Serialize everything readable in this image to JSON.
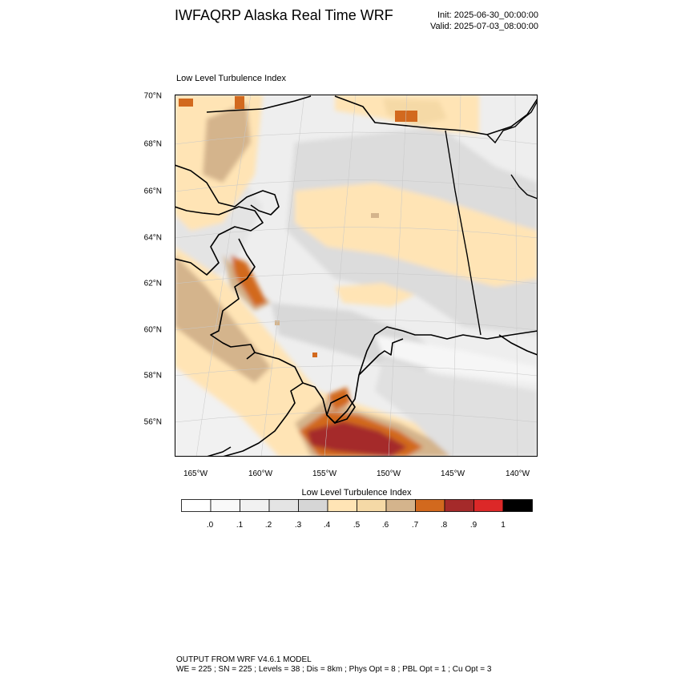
{
  "header": {
    "title": "IWFAQRP Alaska Real Time WRF",
    "init": "Init: 2025-06-30_00:00:00",
    "valid": "Valid: 2025-07-03_08:00:00"
  },
  "map": {
    "title": "Low Level Turbulence Index",
    "lat_labels": [
      "70°N",
      "68°N",
      "66°N",
      "64°N",
      "62°N",
      "60°N",
      "58°N",
      "56°N"
    ],
    "lon_labels": [
      "165°W",
      "160°W",
      "155°W",
      "150°W",
      "145°W",
      "140°W"
    ]
  },
  "colorbar": {
    "title": "Low Level Turbulence Index",
    "colors": [
      "#ffffff",
      "#f9f9f9",
      "#f1f1f1",
      "#e4e4e4",
      "#d6d6d6",
      "#ffe4b5",
      "#f5d9a6",
      "#d4b48c",
      "#d2691e",
      "#a52a2a",
      "#dc2828",
      "#000000"
    ],
    "labels": [
      ".0",
      ".1",
      ".2",
      ".3",
      ".4",
      ".5",
      ".6",
      ".7",
      ".8",
      ".9",
      "1"
    ]
  },
  "footer": {
    "line1": "OUTPUT FROM WRF V4.6.1 MODEL",
    "line2": "WE = 225 ; SN = 225 ; Levels = 38 ; Dis = 8km ; Phys Opt = 8 ; PBL Opt = 1 ; Cu Opt = 3"
  }
}
